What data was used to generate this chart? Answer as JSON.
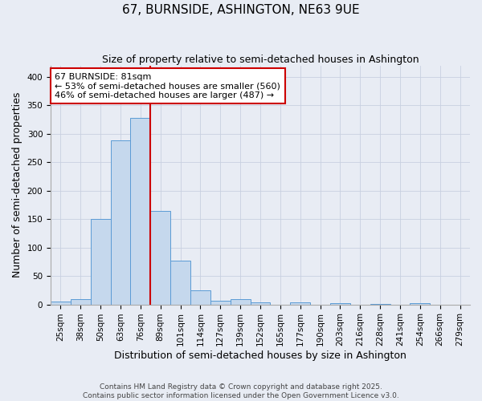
{
  "title": "67, BURNSIDE, ASHINGTON, NE63 9UE",
  "subtitle": "Size of property relative to semi-detached houses in Ashington",
  "xlabel": "Distribution of semi-detached houses by size in Ashington",
  "ylabel": "Number of semi-detached properties",
  "categories": [
    "25sqm",
    "38sqm",
    "50sqm",
    "63sqm",
    "76sqm",
    "89sqm",
    "101sqm",
    "114sqm",
    "127sqm",
    "139sqm",
    "152sqm",
    "165sqm",
    "177sqm",
    "190sqm",
    "203sqm",
    "216sqm",
    "228sqm",
    "241sqm",
    "254sqm",
    "266sqm",
    "279sqm"
  ],
  "values": [
    5,
    9,
    150,
    289,
    328,
    165,
    77,
    25,
    6,
    9,
    3,
    0,
    4,
    0,
    2,
    0,
    1,
    0,
    2,
    0,
    0
  ],
  "bar_color": "#c5d8ed",
  "bar_edgecolor": "#5b9bd5",
  "vline_color": "#cc0000",
  "vline_x": 4.5,
  "annotation_text_line1": "67 BURNSIDE: 81sqm",
  "annotation_text_line2": "← 53% of semi-detached houses are smaller (560)",
  "annotation_text_line3": "46% of semi-detached houses are larger (487) →",
  "annotation_box_color": "#cc0000",
  "ylim": [
    0,
    420
  ],
  "yticks": [
    0,
    50,
    100,
    150,
    200,
    250,
    300,
    350,
    400
  ],
  "grid_color": "#c8d0e0",
  "background_color": "#e8ecf4",
  "footer1": "Contains HM Land Registry data © Crown copyright and database right 2025.",
  "footer2": "Contains public sector information licensed under the Open Government Licence v3.0.",
  "title_fontsize": 11,
  "subtitle_fontsize": 9,
  "xlabel_fontsize": 9,
  "ylabel_fontsize": 9,
  "tick_fontsize": 7.5,
  "annotation_fontsize": 8,
  "footer_fontsize": 6.5
}
